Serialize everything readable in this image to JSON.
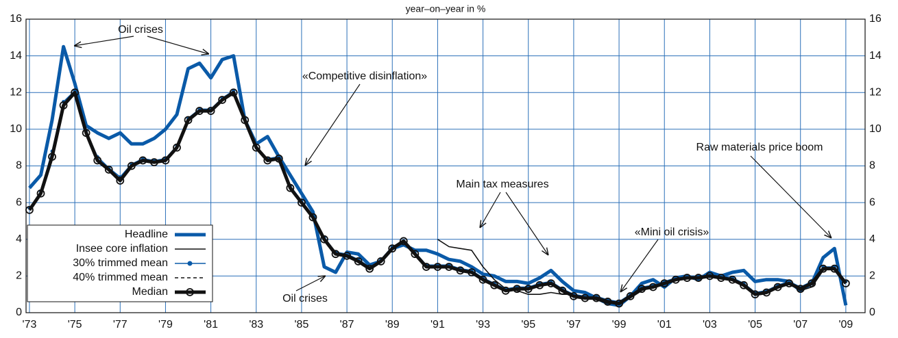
{
  "chart_data": {
    "type": "line",
    "title": "year–on–year in %",
    "x": [
      1973.0,
      1973.5,
      1974.0,
      1974.5,
      1975.0,
      1975.5,
      1976.0,
      1976.5,
      1977.0,
      1977.5,
      1978.0,
      1978.5,
      1979.0,
      1979.5,
      1980.0,
      1980.5,
      1981.0,
      1981.5,
      1982.0,
      1982.5,
      1983.0,
      1983.5,
      1984.0,
      1984.5,
      1985.0,
      1985.5,
      1986.0,
      1986.5,
      1987.0,
      1987.5,
      1988.0,
      1988.5,
      1989.0,
      1989.5,
      1990.0,
      1990.5,
      1991.0,
      1991.5,
      1992.0,
      1992.5,
      1993.0,
      1993.5,
      1994.0,
      1994.5,
      1995.0,
      1995.5,
      1996.0,
      1996.5,
      1997.0,
      1997.5,
      1998.0,
      1998.5,
      1999.0,
      1999.5,
      2000.0,
      2000.5,
      2001.0,
      2001.5,
      2002.0,
      2002.5,
      2003.0,
      2003.5,
      2004.0,
      2004.5,
      2005.0,
      2005.5,
      2006.0,
      2006.5,
      2007.0,
      2007.5,
      2008.0,
      2008.5,
      2009.0
    ],
    "series": [
      {
        "name": "Headline",
        "color": "#0a5aa8",
        "style": "thick",
        "marker": "none",
        "values": [
          6.8,
          7.5,
          10.5,
          14.5,
          12.5,
          10.2,
          9.8,
          9.5,
          9.8,
          9.2,
          9.2,
          9.5,
          10.0,
          10.8,
          13.3,
          13.6,
          12.8,
          13.8,
          14.0,
          10.5,
          9.2,
          9.6,
          8.5,
          7.5,
          6.5,
          5.5,
          2.5,
          2.2,
          3.3,
          3.2,
          2.6,
          2.8,
          3.5,
          3.7,
          3.4,
          3.4,
          3.2,
          2.9,
          2.8,
          2.5,
          2.1,
          2.0,
          1.7,
          1.7,
          1.6,
          1.9,
          2.3,
          1.7,
          1.2,
          1.1,
          0.8,
          0.5,
          0.4,
          0.9,
          1.6,
          1.8,
          1.4,
          1.9,
          2.0,
          1.8,
          2.2,
          2.0,
          2.2,
          2.3,
          1.7,
          1.8,
          1.8,
          1.7,
          1.2,
          1.6,
          3.0,
          3.5,
          0.4
        ]
      },
      {
        "name": "Insee core inflation",
        "color": "#111111",
        "style": "thin",
        "marker": "none",
        "values": [
          null,
          null,
          null,
          null,
          null,
          null,
          null,
          null,
          null,
          null,
          null,
          null,
          null,
          null,
          null,
          null,
          null,
          null,
          null,
          null,
          null,
          null,
          null,
          null,
          null,
          null,
          null,
          null,
          null,
          null,
          null,
          null,
          null,
          null,
          null,
          null,
          4.0,
          3.6,
          3.5,
          3.4,
          2.5,
          1.8,
          1.3,
          1.2,
          1.0,
          1.0,
          1.1,
          1.0,
          1.0,
          0.8,
          0.7,
          0.5,
          0.5,
          0.8,
          1.2,
          1.4,
          1.6,
          1.8,
          1.9,
          2.0,
          2.0,
          1.9,
          1.8,
          1.6,
          1.1,
          1.2,
          1.5,
          1.6,
          1.2,
          1.4,
          2.3,
          2.5,
          1.7
        ]
      },
      {
        "name": "30% trimmed mean",
        "color": "#0a5aa8",
        "style": "thin",
        "marker": "dot",
        "values": [
          5.7,
          6.6,
          8.8,
          11.5,
          12.1,
          9.9,
          8.5,
          7.9,
          7.4,
          8.1,
          8.4,
          8.3,
          8.4,
          9.1,
          10.6,
          11.1,
          11.1,
          11.7,
          12.1,
          10.6,
          9.0,
          8.4,
          8.5,
          6.9,
          6.1,
          5.3,
          4.1,
          3.3,
          3.2,
          2.9,
          2.5,
          2.9,
          3.6,
          3.9,
          3.3,
          2.6,
          2.6,
          2.6,
          2.4,
          2.3,
          1.9,
          1.6,
          1.3,
          1.4,
          1.4,
          1.6,
          1.7,
          1.3,
          1.0,
          0.9,
          0.9,
          0.7,
          0.6,
          1.0,
          1.4,
          1.5,
          1.7,
          1.9,
          2.0,
          2.0,
          2.1,
          2.0,
          1.9,
          1.6,
          1.1,
          1.2,
          1.5,
          1.7,
          1.4,
          1.7,
          2.5,
          2.5,
          1.7
        ]
      },
      {
        "name": "40% trimmed mean",
        "color": "#111111",
        "style": "dashed",
        "marker": "none",
        "values": [
          5.6,
          6.5,
          8.6,
          11.4,
          12.0,
          9.8,
          8.4,
          7.8,
          7.3,
          8.0,
          8.3,
          8.2,
          8.3,
          9.0,
          10.5,
          11.0,
          11.0,
          11.6,
          12.0,
          10.5,
          9.0,
          8.3,
          8.4,
          6.8,
          6.0,
          5.2,
          4.0,
          3.2,
          3.1,
          2.8,
          2.4,
          2.8,
          3.5,
          3.9,
          3.2,
          2.5,
          2.5,
          2.5,
          2.3,
          2.2,
          1.8,
          1.5,
          1.2,
          1.3,
          1.3,
          1.5,
          1.6,
          1.2,
          0.9,
          0.8,
          0.8,
          0.6,
          0.5,
          0.9,
          1.3,
          1.4,
          1.6,
          1.8,
          1.9,
          1.9,
          2.0,
          1.9,
          1.8,
          1.5,
          1.0,
          1.1,
          1.4,
          1.6,
          1.3,
          1.6,
          2.4,
          2.4,
          1.6
        ]
      },
      {
        "name": "Median",
        "color": "#111111",
        "style": "thick",
        "marker": "circle",
        "values": [
          5.6,
          6.5,
          8.5,
          11.3,
          12.0,
          9.8,
          8.3,
          7.8,
          7.2,
          8.0,
          8.3,
          8.2,
          8.3,
          9.0,
          10.5,
          11.0,
          11.0,
          11.6,
          12.0,
          10.5,
          9.0,
          8.3,
          8.4,
          6.8,
          6.0,
          5.2,
          4.0,
          3.2,
          3.1,
          2.8,
          2.4,
          2.8,
          3.5,
          3.9,
          3.2,
          2.5,
          2.5,
          2.5,
          2.3,
          2.2,
          1.8,
          1.5,
          1.2,
          1.3,
          1.3,
          1.5,
          1.6,
          1.2,
          0.9,
          0.8,
          0.8,
          0.6,
          0.5,
          0.9,
          1.3,
          1.4,
          1.6,
          1.8,
          1.9,
          1.9,
          2.0,
          1.9,
          1.8,
          1.5,
          1.0,
          1.1,
          1.4,
          1.6,
          1.3,
          1.6,
          2.4,
          2.4,
          1.6
        ]
      }
    ],
    "xlim": [
      1972.85,
      2009.85
    ],
    "xticks": [
      {
        "value": 1973,
        "label": "'73"
      },
      {
        "value": 1975,
        "label": "'75"
      },
      {
        "value": 1977,
        "label": "'77"
      },
      {
        "value": 1979,
        "label": "'79"
      },
      {
        "value": 1981,
        "label": "'81"
      },
      {
        "value": 1983,
        "label": "'83"
      },
      {
        "value": 1985,
        "label": "'85"
      },
      {
        "value": 1987,
        "label": "'87"
      },
      {
        "value": 1989,
        "label": "'89"
      },
      {
        "value": 1991,
        "label": "'91"
      },
      {
        "value": 1993,
        "label": "'93"
      },
      {
        "value": 1995,
        "label": "'95"
      },
      {
        "value": 1997,
        "label": "'97"
      },
      {
        "value": 1999,
        "label": "'99"
      },
      {
        "value": 2001,
        "label": "'01"
      },
      {
        "value": 2003,
        "label": "'03"
      },
      {
        "value": 2005,
        "label": "'05"
      },
      {
        "value": 2007,
        "label": "'07"
      },
      {
        "value": 2009,
        "label": "'09"
      }
    ],
    "ylim": [
      0,
      16
    ],
    "yticks": [
      0,
      2,
      4,
      6,
      8,
      10,
      12,
      14,
      16
    ],
    "grid": true,
    "legend": "lower left",
    "annotations": [
      "Oil crises",
      "«Competitive disinflation»",
      "Main tax measures",
      "«Mini oil crisis»",
      "Raw materials price boom",
      "Oil crises"
    ]
  }
}
